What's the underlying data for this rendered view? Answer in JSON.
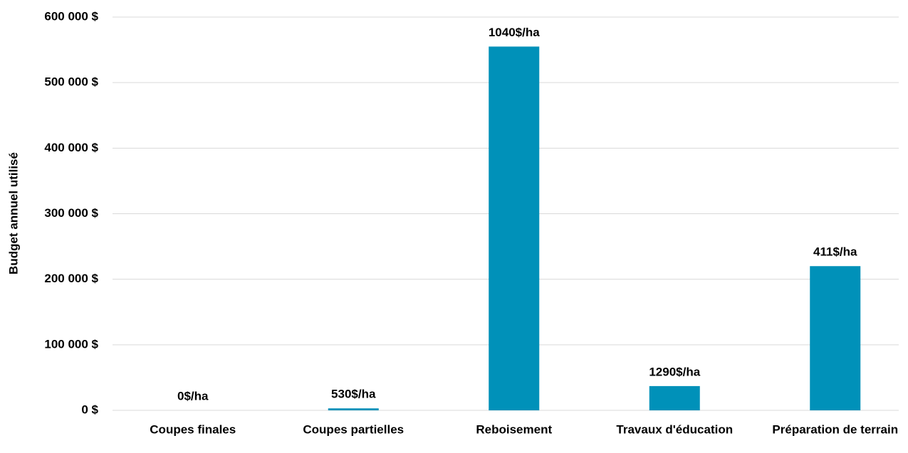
{
  "chart_data": {
    "type": "bar",
    "y_label": "Budget annuel utilisé",
    "categories": [
      "Coupes finales",
      "Coupes partielles",
      "Reboisement",
      "Travaux d'éducation",
      "Préparation de terrain"
    ],
    "values": [
      0,
      3000,
      555000,
      37000,
      220000
    ],
    "annotations": [
      "0$/ha",
      "530$/ha",
      "1040$/ha",
      "1290$/ha",
      "411$/ha"
    ],
    "color": "#0091b9",
    "ylim": [
      0,
      600000
    ],
    "yticks": [
      {
        "value": 0,
        "label": "0 $"
      },
      {
        "value": 100000,
        "label": "100 000 $"
      },
      {
        "value": 200000,
        "label": "200 000 $"
      },
      {
        "value": 300000,
        "label": "300 000 $"
      },
      {
        "value": 400000,
        "label": "400 000 $"
      },
      {
        "value": 500000,
        "label": "500 000 $"
      },
      {
        "value": 600000,
        "label": "600 000 $"
      }
    ],
    "grid": true
  }
}
